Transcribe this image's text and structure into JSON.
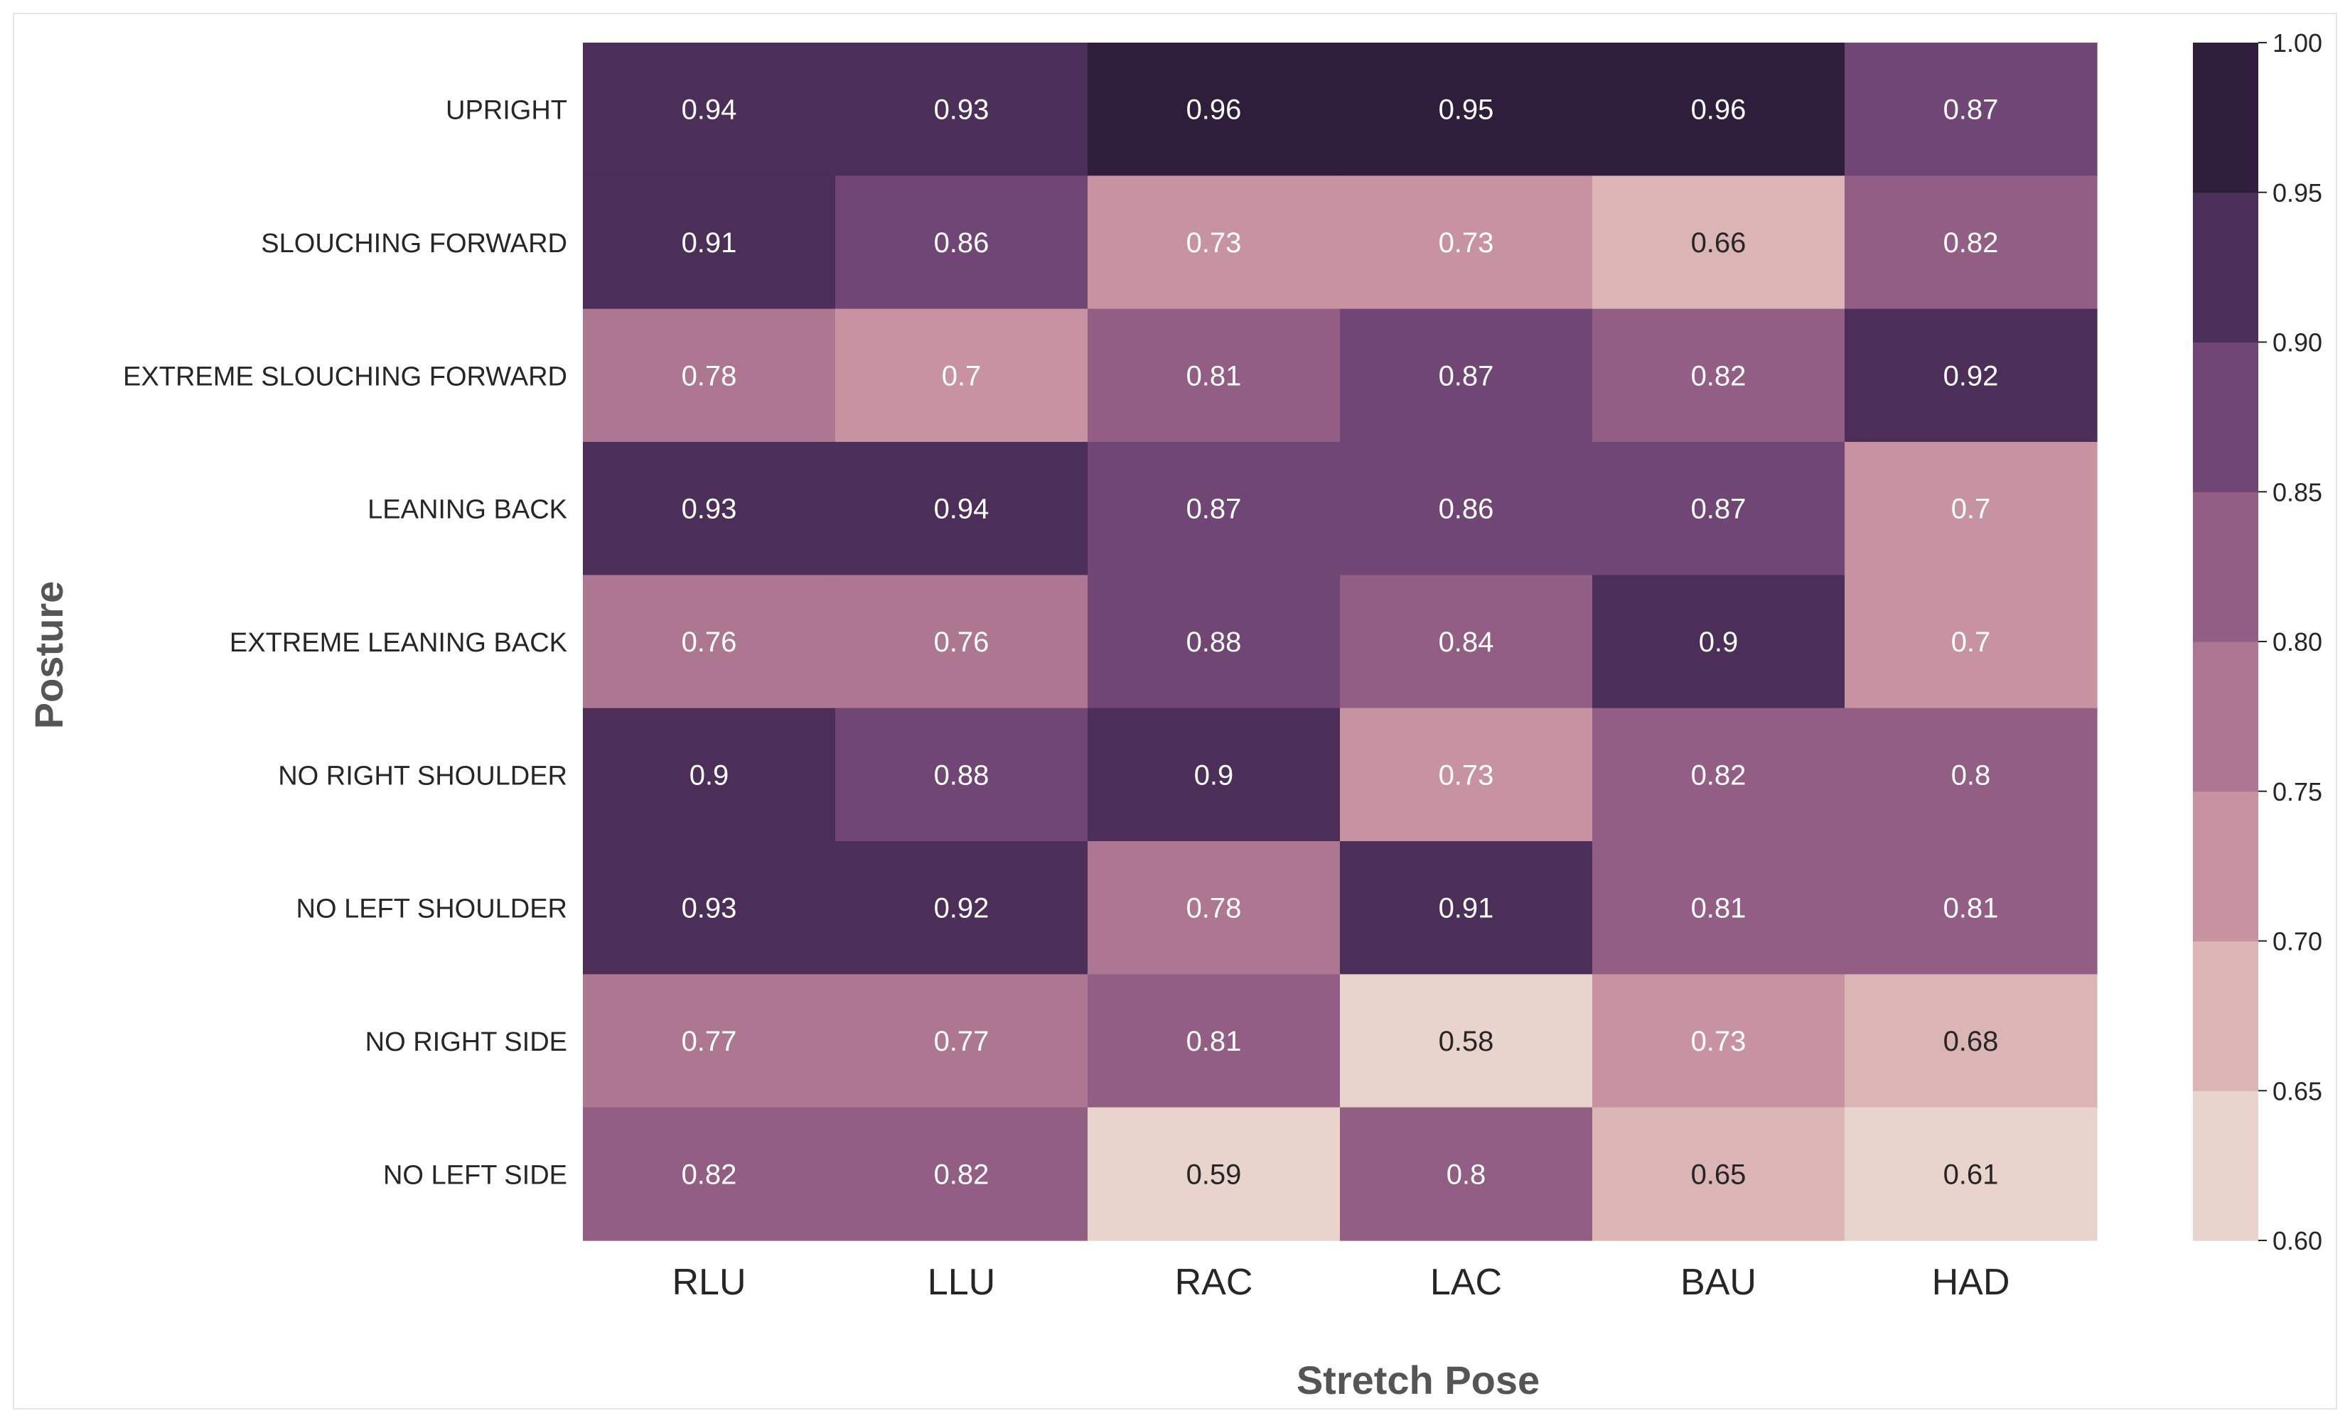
{
  "chart_data": {
    "type": "heatmap",
    "xlabel": "Stretch Pose",
    "ylabel": "Posture",
    "x_categories": [
      "RLU",
      "LLU",
      "RAC",
      "LAC",
      "BAU",
      "HAD"
    ],
    "y_categories": [
      "UPRIGHT",
      "SLOUCHING FORWARD",
      "EXTREME SLOUCHING FORWARD",
      "LEANING BACK",
      "EXTREME LEANING BACK",
      "NO RIGHT SHOULDER",
      "NO LEFT SHOULDER",
      "NO RIGHT SIDE",
      "NO LEFT SIDE"
    ],
    "values": [
      [
        0.94,
        0.93,
        0.96,
        0.95,
        0.96,
        0.87
      ],
      [
        0.91,
        0.86,
        0.73,
        0.73,
        0.66,
        0.82
      ],
      [
        0.78,
        0.7,
        0.81,
        0.87,
        0.82,
        0.92
      ],
      [
        0.93,
        0.94,
        0.87,
        0.86,
        0.87,
        0.7
      ],
      [
        0.76,
        0.76,
        0.88,
        0.84,
        0.9,
        0.7
      ],
      [
        0.9,
        0.88,
        0.9,
        0.73,
        0.82,
        0.8
      ],
      [
        0.93,
        0.92,
        0.78,
        0.91,
        0.81,
        0.81
      ],
      [
        0.77,
        0.77,
        0.81,
        0.58,
        0.73,
        0.68
      ],
      [
        0.82,
        0.82,
        0.59,
        0.8,
        0.65,
        0.61
      ]
    ],
    "value_labels": [
      [
        "0.94",
        "0.93",
        "0.96",
        "0.95",
        "0.96",
        "0.87"
      ],
      [
        "0.91",
        "0.86",
        "0.73",
        "0.73",
        "0.66",
        "0.82"
      ],
      [
        "0.78",
        "0.7",
        "0.81",
        "0.87",
        "0.82",
        "0.92"
      ],
      [
        "0.93",
        "0.94",
        "0.87",
        "0.86",
        "0.87",
        "0.7"
      ],
      [
        "0.76",
        "0.76",
        "0.88",
        "0.84",
        "0.9",
        "0.7"
      ],
      [
        "0.9",
        "0.88",
        "0.9",
        "0.73",
        "0.82",
        "0.8"
      ],
      [
        "0.93",
        "0.92",
        "0.78",
        "0.91",
        "0.81",
        "0.81"
      ],
      [
        "0.77",
        "0.77",
        "0.81",
        "0.58",
        "0.73",
        "0.68"
      ],
      [
        "0.82",
        "0.82",
        "0.59",
        "0.8",
        "0.65",
        "0.61"
      ]
    ],
    "colorbar": {
      "vmin": 0.6,
      "vmax": 1.0,
      "bins": [
        {
          "from": 0.6,
          "to": 0.65,
          "color": "#e8d3cd"
        },
        {
          "from": 0.65,
          "to": 0.7,
          "color": "#dbb5b5"
        },
        {
          "from": 0.7,
          "to": 0.75,
          "color": "#c793a0"
        },
        {
          "from": 0.75,
          "to": 0.8,
          "color": "#ad7791"
        },
        {
          "from": 0.8,
          "to": 0.85,
          "color": "#925e83"
        },
        {
          "from": 0.85,
          "to": 0.9,
          "color": "#704674"
        },
        {
          "from": 0.9,
          "to": 0.95,
          "color": "#4b2f59"
        },
        {
          "from": 0.95,
          "to": 1.0,
          "color": "#2e1e3b"
        }
      ],
      "tick_values": [
        0.6,
        0.65,
        0.7,
        0.75,
        0.8,
        0.85,
        0.9,
        0.95,
        1.0
      ],
      "tick_labels": [
        "0.60",
        "0.65",
        "0.70",
        "0.75",
        "0.80",
        "0.85",
        "0.90",
        "0.95",
        "1.00"
      ]
    },
    "text_color_light": "#ffffff",
    "text_color_dark": "#262626",
    "label_color": "#262626",
    "axis_title_color": "#555555"
  }
}
